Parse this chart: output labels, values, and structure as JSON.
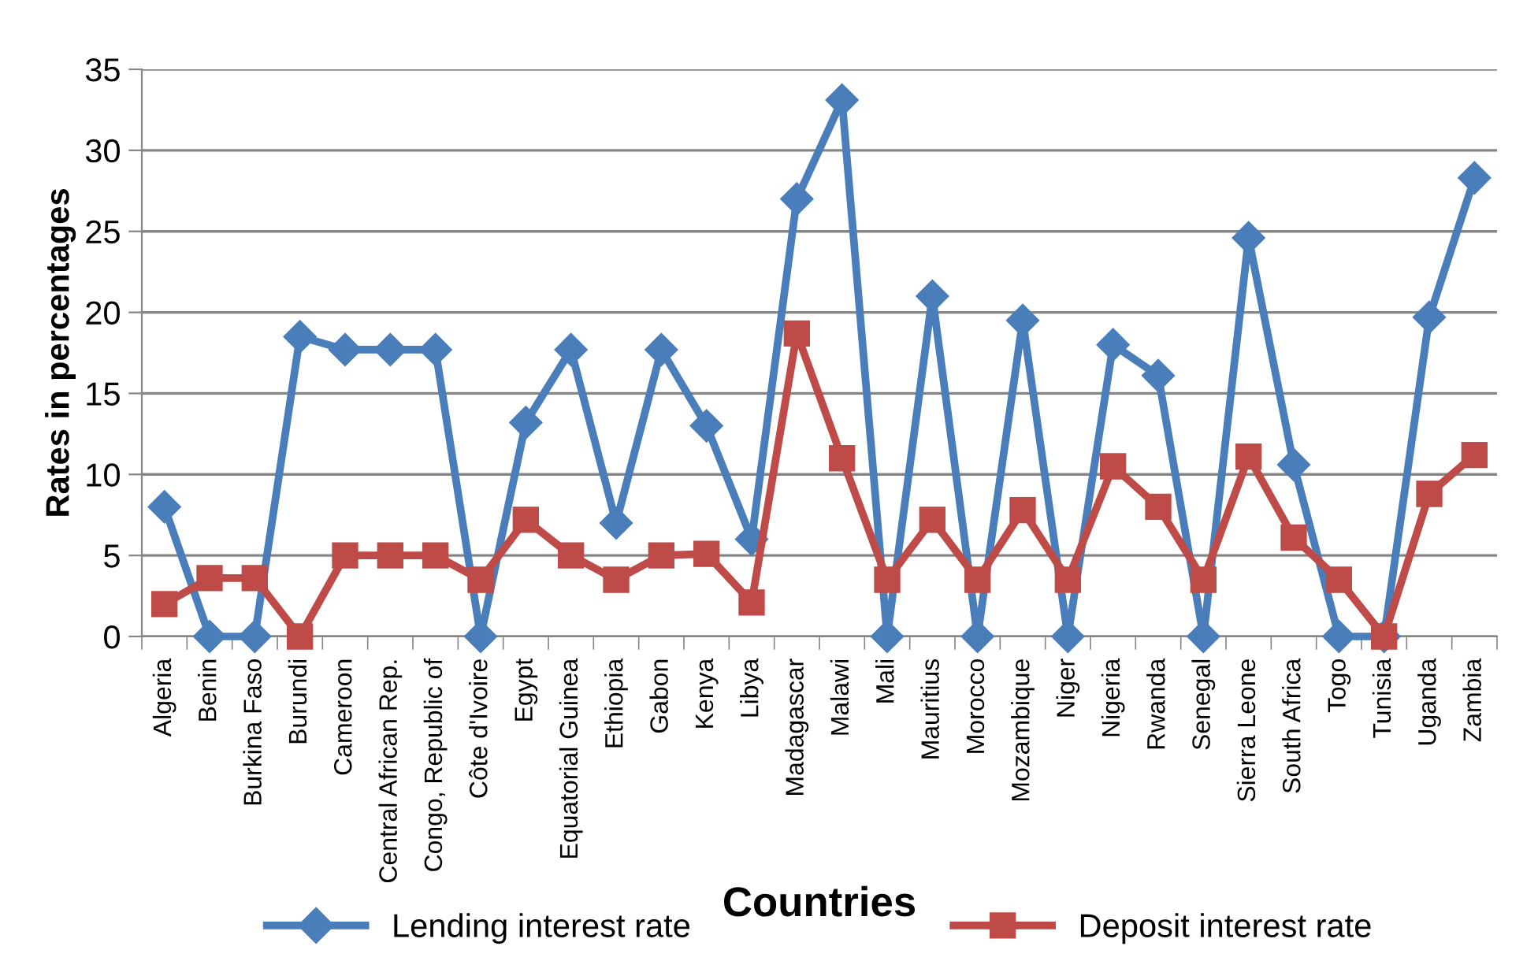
{
  "chart_data": {
    "type": "line",
    "xlabel": "Countries",
    "ylabel": "Rates in percentages",
    "categories": [
      "Algeria",
      "Benin",
      "Burkina Faso",
      "Burundi",
      "Cameroon",
      "Central African Rep.",
      "Congo, Republic of",
      "Côte d'Ivoire",
      "Egypt",
      "Equatorial Guinea",
      "Ethiopia",
      "Gabon",
      "Kenya",
      "Libya",
      "Madagascar",
      "Malawi",
      "Mali",
      "Mauritius",
      "Morocco",
      "Mozambique",
      "Niger",
      "Nigeria",
      "Rwanda",
      "Senegal",
      "Sierra Leone",
      "South Africa",
      "Togo",
      "Tunisia",
      "Uganda",
      "Zambia"
    ],
    "series": [
      {
        "name": "Lending interest rate",
        "color": "#4a7ebb",
        "marker": "diamond",
        "values": [
          8.0,
          0,
          0,
          18.5,
          17.7,
          17.7,
          17.7,
          0,
          13.2,
          17.7,
          7.0,
          17.7,
          13.0,
          6.0,
          27.0,
          33.1,
          0,
          21.0,
          0,
          19.5,
          0,
          18.0,
          16.1,
          0,
          24.6,
          10.6,
          0,
          0,
          19.7,
          28.3
        ]
      },
      {
        "name": "Deposit interest rate",
        "color": "#be4b48",
        "marker": "square",
        "values": [
          2.0,
          3.6,
          3.6,
          0,
          5.0,
          5.0,
          5.0,
          3.5,
          7.2,
          5.0,
          3.5,
          5.0,
          5.1,
          2.1,
          18.7,
          11.0,
          3.5,
          7.2,
          3.5,
          7.8,
          3.5,
          10.5,
          8.0,
          3.5,
          11.1,
          6.1,
          3.5,
          0,
          8.8,
          11.2
        ]
      }
    ],
    "ylim": [
      0,
      35
    ],
    "yticks": [
      0,
      5,
      10,
      15,
      20,
      25,
      30,
      35
    ],
    "grid": "y",
    "legend": "bottom",
    "line_style": "solid"
  }
}
